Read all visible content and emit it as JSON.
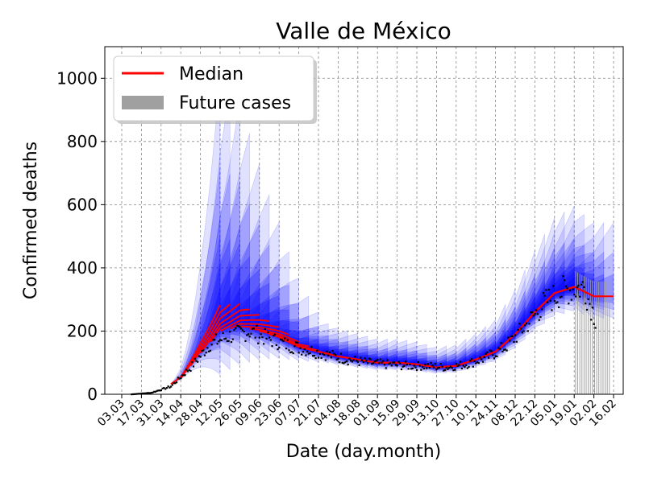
{
  "chart_data": {
    "type": "line",
    "title": "Valle de México",
    "xlabel": "Date (day.month)",
    "ylabel": "Confirmed deaths",
    "x_ticks": [
      "03.03",
      "17.03",
      "31.03",
      "14.04",
      "28.04",
      "12.05",
      "26.05",
      "09.06",
      "23.06",
      "07.07",
      "21.07",
      "04.08",
      "18.08",
      "01.09",
      "15.09",
      "29.09",
      "13.10",
      "27.10",
      "10.11",
      "24.11",
      "08.12",
      "22.12",
      "05.01",
      "19.01",
      "02.02",
      "16.02"
    ],
    "y_ticks": [
      0,
      200,
      400,
      600,
      800,
      1000
    ],
    "ylim": [
      0,
      1100
    ],
    "grid": true,
    "legend": {
      "position": "top-left",
      "entries": [
        "Median",
        "Future cases"
      ]
    },
    "colors": {
      "median": "#ff0000",
      "band": "#0000ff",
      "future": "#a0a0a0",
      "observed": "#000000"
    },
    "series": [
      {
        "name": "Median",
        "x": [
          "2020-03-03",
          "2020-03-17",
          "2020-03-31",
          "2020-04-14",
          "2020-04-28",
          "2020-05-12",
          "2020-05-26",
          "2020-06-09",
          "2020-06-23",
          "2020-07-07",
          "2020-07-21",
          "2020-08-04",
          "2020-08-18",
          "2020-09-01",
          "2020-09-15",
          "2020-09-29",
          "2020-10-13",
          "2020-10-27",
          "2020-11-10",
          "2020-11-24",
          "2020-12-08",
          "2020-12-22",
          "2021-01-05",
          "2021-01-19",
          "2021-02-02"
        ],
        "values": [
          0,
          2,
          15,
          50,
          130,
          200,
          215,
          200,
          180,
          150,
          135,
          120,
          110,
          100,
          100,
          95,
          85,
          90,
          110,
          135,
          190,
          260,
          320,
          340,
          310
        ]
      },
      {
        "name": "Observed",
        "x": [
          "2020-03-10",
          "2020-03-24",
          "2020-04-07",
          "2020-04-21",
          "2020-05-05",
          "2020-05-19",
          "2020-06-02",
          "2020-06-16",
          "2020-06-30",
          "2020-07-14",
          "2020-07-28",
          "2020-08-11",
          "2020-08-25",
          "2020-09-08",
          "2020-09-22",
          "2020-10-06",
          "2020-10-20",
          "2020-11-03",
          "2020-11-17",
          "2020-12-01",
          "2020-12-15",
          "2020-12-29",
          "2021-01-12",
          "2021-01-26",
          "2021-02-03"
        ],
        "values": [
          0,
          5,
          25,
          85,
          160,
          185,
          200,
          175,
          155,
          140,
          125,
          110,
          100,
          95,
          90,
          90,
          85,
          95,
          115,
          150,
          215,
          290,
          330,
          340,
          240
        ]
      }
    ]
  }
}
